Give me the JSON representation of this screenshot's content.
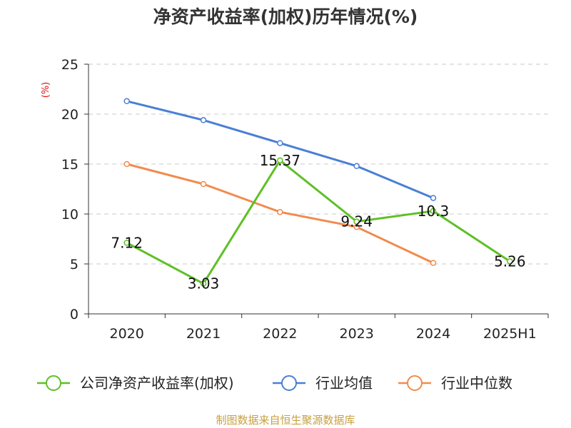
{
  "chart_data": {
    "type": "line",
    "title": "净资产收益率(加权)历年情况(%)",
    "ylabel": "(%)",
    "xlabel": "",
    "categories": [
      "2020",
      "2021",
      "2022",
      "2023",
      "2024",
      "2025H1"
    ],
    "ylim": [
      0,
      25
    ],
    "yticks": [
      "0",
      "5",
      "10",
      "15",
      "20",
      "25"
    ],
    "grid": true,
    "legend_position": "bottom",
    "series": [
      {
        "name": "公司净资产收益率(加权)",
        "color": "#5ec026",
        "values": [
          7.12,
          3.03,
          15.37,
          9.24,
          10.3,
          5.26
        ],
        "labels": [
          "7.12",
          "3.03",
          "15.37",
          "9.24",
          "10.3",
          "5.26"
        ]
      },
      {
        "name": "行业均值",
        "color": "#4a7fd6",
        "values": [
          21.3,
          19.4,
          17.1,
          14.8,
          11.6,
          null
        ]
      },
      {
        "name": "行业中位数",
        "color": "#f28a4d",
        "values": [
          15.0,
          13.0,
          10.2,
          8.7,
          5.1,
          null
        ]
      }
    ]
  },
  "source": "制图数据来自恒生聚源数据库"
}
